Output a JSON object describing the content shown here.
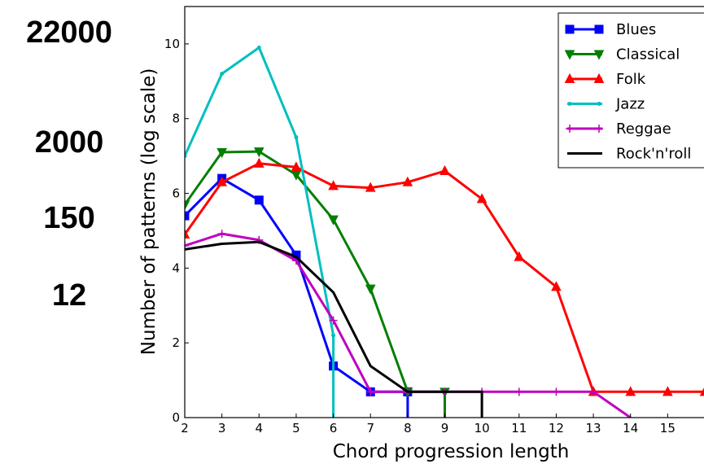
{
  "side_labels": [
    "22000",
    "2000",
    "150",
    "12"
  ],
  "chart_data": {
    "type": "line",
    "xlabel": "Chord progression length",
    "ylabel": "Number of patterns (log scale)",
    "xlim": [
      2,
      16
    ],
    "ylim": [
      0,
      11
    ],
    "x_ticks": [
      2,
      3,
      4,
      5,
      6,
      7,
      8,
      9,
      10,
      11,
      12,
      13,
      14,
      15
    ],
    "y_ticks": [
      0,
      2,
      4,
      6,
      8,
      10
    ],
    "grid": false,
    "legend_position": "top-right",
    "series": [
      {
        "name": "Blues",
        "color": "#0000ff",
        "marker": "square",
        "points": [
          [
            2,
            5.4
          ],
          [
            3,
            6.4
          ],
          [
            4,
            5.82
          ],
          [
            5,
            4.35
          ],
          [
            6,
            1.38
          ],
          [
            7,
            0.69
          ],
          [
            8,
            0.69
          ],
          [
            8,
            0
          ]
        ]
      },
      {
        "name": "Classical",
        "color": "#007f00",
        "marker": "triangle-down",
        "points": [
          [
            2,
            5.7
          ],
          [
            3,
            7.1
          ],
          [
            4,
            7.12
          ],
          [
            5,
            6.5
          ],
          [
            6,
            5.3
          ],
          [
            7,
            3.45
          ],
          [
            8,
            0.69
          ],
          [
            9,
            0.69
          ],
          [
            9,
            0
          ]
        ]
      },
      {
        "name": "Folk",
        "color": "#ff0000",
        "marker": "triangle-up",
        "points": [
          [
            2,
            4.9
          ],
          [
            3,
            6.3
          ],
          [
            4,
            6.8
          ],
          [
            5,
            6.7
          ],
          [
            6,
            6.2
          ],
          [
            7,
            6.15
          ],
          [
            8,
            6.3
          ],
          [
            9,
            6.6
          ],
          [
            10,
            5.85
          ],
          [
            11,
            4.3
          ],
          [
            12,
            3.5
          ],
          [
            13,
            0.69
          ],
          [
            14,
            0.69
          ],
          [
            15,
            0.69
          ],
          [
            16,
            0.69
          ]
        ]
      },
      {
        "name": "Jazz",
        "color": "#00bfbf",
        "marker": "dot",
        "points": [
          [
            2,
            7.0
          ],
          [
            3,
            9.2
          ],
          [
            4,
            9.9
          ],
          [
            5,
            7.5
          ],
          [
            6,
            2.2
          ],
          [
            6,
            0
          ]
        ]
      },
      {
        "name": "Reggae",
        "color": "#bf00bf",
        "marker": "plus",
        "points": [
          [
            2,
            4.6
          ],
          [
            3,
            4.92
          ],
          [
            4,
            4.75
          ],
          [
            5,
            4.2
          ],
          [
            6,
            2.6
          ],
          [
            7,
            0.69
          ],
          [
            8,
            0.69
          ],
          [
            9,
            0.69
          ],
          [
            10,
            0.69
          ],
          [
            11,
            0.69
          ],
          [
            12,
            0.69
          ],
          [
            13,
            0.69
          ],
          [
            14,
            0
          ]
        ]
      },
      {
        "name": "Rock'n'roll",
        "color": "#000000",
        "marker": "none",
        "points": [
          [
            2,
            4.5
          ],
          [
            3,
            4.65
          ],
          [
            4,
            4.7
          ],
          [
            5,
            4.3
          ],
          [
            6,
            3.35
          ],
          [
            7,
            1.38
          ],
          [
            8,
            0.69
          ],
          [
            9,
            0.69
          ],
          [
            10,
            0.69
          ],
          [
            10,
            0
          ]
        ]
      }
    ]
  }
}
